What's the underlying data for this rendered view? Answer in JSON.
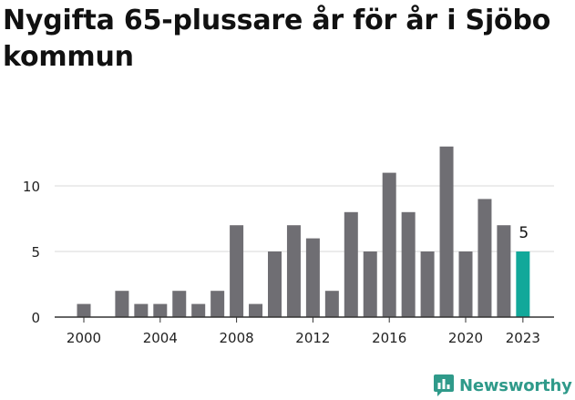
{
  "chart_data": {
    "type": "bar",
    "title": "Nygifta 65-plussare år för år i Sjöbo kommun",
    "xlabel": "",
    "ylabel": "",
    "categories": [
      "2000",
      "2001",
      "2002",
      "2003",
      "2004",
      "2005",
      "2006",
      "2007",
      "2008",
      "2009",
      "2010",
      "2011",
      "2012",
      "2013",
      "2014",
      "2015",
      "2016",
      "2017",
      "2018",
      "2019",
      "2020",
      "2021",
      "2022",
      "2023"
    ],
    "values": [
      1,
      0,
      2,
      1,
      1,
      2,
      1,
      2,
      7,
      1,
      5,
      7,
      6,
      2,
      8,
      5,
      11,
      8,
      5,
      13,
      5,
      9,
      7,
      5
    ],
    "x_tick_labels": [
      "2000",
      "2004",
      "2008",
      "2012",
      "2016",
      "2020",
      "2023"
    ],
    "y_ticks": [
      0,
      5,
      10
    ],
    "ylim": [
      0,
      13
    ],
    "grid": true,
    "bar_color": "#6f6e73",
    "highlight_color": "#12a89a",
    "highlight_category": "2023",
    "annotations": [
      {
        "category": "2023",
        "text": "5"
      }
    ]
  },
  "brand": {
    "name": "Newsworthy",
    "icon": "newsworthy-logo-icon",
    "color": "#2f9a8a"
  }
}
